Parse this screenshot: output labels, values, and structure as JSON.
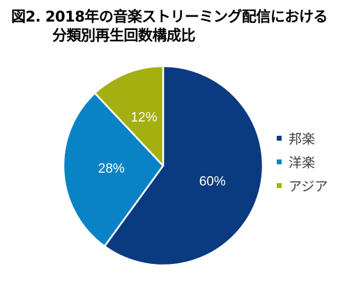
{
  "title_lines": [
    "図2. 2018年の音楽ストリーミング配信における",
    "分類別再生回数構成比"
  ],
  "chart_data": {
    "type": "pie",
    "title": "図2. 2018年の音楽ストリーミング配信における分類別再生回数構成比",
    "categories": [
      "邦楽",
      "洋楽",
      "アジア"
    ],
    "values": [
      60,
      28,
      12
    ],
    "data_labels": [
      "60%",
      "28%",
      "12%"
    ],
    "colors": [
      "#0a3a80",
      "#0a83c6",
      "#a3b00f"
    ],
    "legend_position": "right"
  }
}
